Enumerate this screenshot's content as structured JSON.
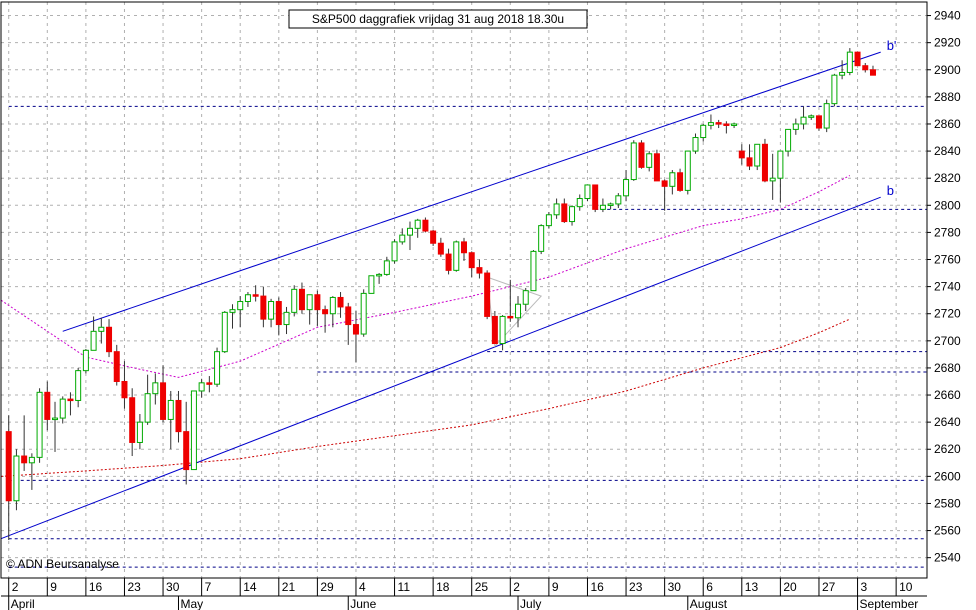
{
  "chart_data": {
    "type": "candlestick",
    "title": "S&P500 daggrafiek vrijdag 31 aug 2018 18.30u",
    "copyright": "© ADN Beursanalyse",
    "ylim": [
      2525,
      2950
    ],
    "y_ticks": [
      2540,
      2560,
      2580,
      2600,
      2620,
      2640,
      2660,
      2680,
      2700,
      2720,
      2740,
      2760,
      2780,
      2800,
      2820,
      2840,
      2860,
      2880,
      2900,
      2920,
      2940
    ],
    "x_tick_labels": [
      {
        "day": 0,
        "label": "2"
      },
      {
        "day": 5,
        "label": "9"
      },
      {
        "day": 10,
        "label": "16"
      },
      {
        "day": 15,
        "label": "23"
      },
      {
        "day": 20,
        "label": "30"
      },
      {
        "day": 25,
        "label": "7"
      },
      {
        "day": 30,
        "label": "14"
      },
      {
        "day": 35,
        "label": "21"
      },
      {
        "day": 40,
        "label": "29"
      },
      {
        "day": 45,
        "label": "4"
      },
      {
        "day": 50,
        "label": "11"
      },
      {
        "day": 55,
        "label": "18"
      },
      {
        "day": 60,
        "label": "25"
      },
      {
        "day": 65,
        "label": "2"
      },
      {
        "day": 70,
        "label": "9"
      },
      {
        "day": 75,
        "label": "16"
      },
      {
        "day": 80,
        "label": "23"
      },
      {
        "day": 85,
        "label": "30"
      },
      {
        "day": 90,
        "label": "6"
      },
      {
        "day": 95,
        "label": "13"
      },
      {
        "day": 100,
        "label": "20"
      },
      {
        "day": 105,
        "label": "27"
      },
      {
        "day": 110,
        "label": "3"
      },
      {
        "day": 115,
        "label": "10"
      }
    ],
    "months": [
      {
        "day": 0,
        "label": "April"
      },
      {
        "day": 22,
        "label": "May"
      },
      {
        "day": 44,
        "label": "June"
      },
      {
        "day": 66,
        "label": "July"
      },
      {
        "day": 88,
        "label": "August"
      },
      {
        "day": 110,
        "label": "September"
      }
    ],
    "x_range_days": [
      -1,
      119
    ],
    "candles": [
      [
        2633,
        2645,
        2553,
        2582
      ],
      [
        2582,
        2620,
        2575,
        2615
      ],
      [
        2615,
        2645,
        2604,
        2610
      ],
      [
        2610,
        2617,
        2590,
        2614
      ],
      [
        2614,
        2665,
        2610,
        2662
      ],
      [
        2662,
        2670,
        2634,
        2642
      ],
      [
        2642,
        2655,
        2618,
        2643
      ],
      [
        2643,
        2659,
        2639,
        2657
      ],
      [
        2657,
        2662,
        2645,
        2656
      ],
      [
        2656,
        2680,
        2651,
        2678
      ],
      [
        2678,
        2694,
        2676,
        2693
      ],
      [
        2693,
        2718,
        2693,
        2707
      ],
      [
        2707,
        2717,
        2698,
        2710
      ],
      [
        2710,
        2716,
        2688,
        2692
      ],
      [
        2692,
        2697,
        2667,
        2670
      ],
      [
        2670,
        2685,
        2650,
        2658
      ],
      [
        2658,
        2665,
        2615,
        2625
      ],
      [
        2625,
        2646,
        2620,
        2640
      ],
      [
        2640,
        2675,
        2638,
        2661
      ],
      [
        2661,
        2676,
        2653,
        2669
      ],
      [
        2669,
        2682,
        2640,
        2642
      ],
      [
        2642,
        2663,
        2620,
        2656
      ],
      [
        2656,
        2663,
        2625,
        2633
      ],
      [
        2633,
        2655,
        2594,
        2605
      ],
      [
        2605,
        2663,
        2605,
        2663
      ],
      [
        2663,
        2672,
        2658,
        2669
      ],
      [
        2669,
        2674,
        2662,
        2668
      ],
      [
        2668,
        2695,
        2666,
        2692
      ],
      [
        2692,
        2722,
        2691,
        2721
      ],
      [
        2721,
        2727,
        2709,
        2723
      ],
      [
        2723,
        2733,
        2710,
        2729
      ],
      [
        2729,
        2736,
        2725,
        2734
      ],
      [
        2734,
        2741,
        2729,
        2733
      ],
      [
        2733,
        2740,
        2710,
        2716
      ],
      [
        2716,
        2731,
        2710,
        2729
      ],
      [
        2729,
        2732,
        2704,
        2712
      ],
      [
        2712,
        2725,
        2705,
        2721
      ],
      [
        2721,
        2741,
        2718,
        2738
      ],
      [
        2738,
        2743,
        2720,
        2723
      ],
      [
        2723,
        2733,
        2712,
        2734
      ],
      [
        2734,
        2737,
        2711,
        2723
      ],
      [
        2723,
        2726,
        2706,
        2720
      ],
      [
        2720,
        2733,
        2710,
        2732
      ],
      [
        2732,
        2736,
        2717,
        2725
      ],
      [
        2725,
        2728,
        2697,
        2712
      ],
      [
        2712,
        2722,
        2684,
        2705
      ],
      [
        2705,
        2738,
        2703,
        2735
      ],
      [
        2735,
        2748,
        2735,
        2748
      ],
      [
        2748,
        2750,
        2742,
        2749
      ],
      [
        2749,
        2762,
        2748,
        2759
      ],
      [
        2759,
        2775,
        2757,
        2773
      ],
      [
        2773,
        2783,
        2771,
        2778
      ],
      [
        2778,
        2788,
        2767,
        2783
      ],
      [
        2783,
        2790,
        2776,
        2789
      ],
      [
        2789,
        2791,
        2780,
        2781
      ],
      [
        2781,
        2782,
        2770,
        2772
      ],
      [
        2772,
        2776,
        2762,
        2764
      ],
      [
        2764,
        2768,
        2749,
        2752
      ],
      [
        2752,
        2774,
        2751,
        2773
      ],
      [
        2773,
        2776,
        2759,
        2765
      ],
      [
        2765,
        2766,
        2747,
        2754
      ],
      [
        2754,
        2760,
        2746,
        2750
      ],
      [
        2750,
        2752,
        2716,
        2718
      ],
      [
        2718,
        2722,
        2698,
        2698
      ],
      [
        2698,
        2719,
        2693,
        2718
      ],
      [
        2718,
        2745,
        2714,
        2717
      ],
      [
        2717,
        2733,
        2710,
        2727
      ],
      [
        2727,
        2739,
        2722,
        2737
      ],
      [
        2737,
        2767,
        2737,
        2766
      ],
      [
        2766,
        2786,
        2764,
        2785
      ],
      [
        2785,
        2795,
        2783,
        2793
      ],
      [
        2793,
        2805,
        2790,
        2801
      ],
      [
        2801,
        2805,
        2787,
        2788
      ],
      [
        2788,
        2800,
        2785,
        2799
      ],
      [
        2799,
        2808,
        2796,
        2805
      ],
      [
        2805,
        2814,
        2803,
        2815
      ],
      [
        2815,
        2814,
        2795,
        2797
      ],
      [
        2797,
        2805,
        2795,
        2800
      ],
      [
        2800,
        2802,
        2797,
        2801
      ],
      [
        2801,
        2809,
        2798,
        2807
      ],
      [
        2807,
        2826,
        2803,
        2819
      ],
      [
        2819,
        2848,
        2818,
        2846
      ],
      [
        2846,
        2848,
        2827,
        2828
      ],
      [
        2828,
        2840,
        2825,
        2838
      ],
      [
        2838,
        2841,
        2818,
        2818
      ],
      [
        2818,
        2819,
        2796,
        2814
      ],
      [
        2814,
        2826,
        2808,
        2824
      ],
      [
        2824,
        2827,
        2810,
        2811
      ],
      [
        2811,
        2840,
        2808,
        2840
      ],
      [
        2840,
        2853,
        2838,
        2850
      ],
      [
        2850,
        2860,
        2847,
        2859
      ],
      [
        2859,
        2867,
        2856,
        2861
      ],
      [
        2861,
        2863,
        2857,
        2860
      ],
      [
        2860,
        2862,
        2853,
        2859
      ],
      [
        2859,
        2861,
        2857,
        2860
      ],
      [
        2840,
        2845,
        2830,
        2835
      ],
      [
        2835,
        2845,
        2826,
        2829
      ],
      [
        2829,
        2845,
        2826,
        2845
      ],
      [
        2845,
        2849,
        2817,
        2818
      ],
      [
        2818,
        2838,
        2804,
        2820
      ],
      [
        2820,
        2840,
        2802,
        2840
      ],
      [
        2840,
        2856,
        2836,
        2856
      ],
      [
        2856,
        2864,
        2852,
        2860
      ],
      [
        2860,
        2873,
        2856,
        2865
      ],
      [
        2865,
        2867,
        2863,
        2866
      ],
      [
        2866,
        2866,
        2855,
        2857
      ],
      [
        2857,
        2878,
        2854,
        2875
      ],
      [
        2875,
        2897,
        2873,
        2896
      ],
      [
        2896,
        2907,
        2893,
        2898
      ],
      [
        2898,
        2916,
        2896,
        2913
      ],
      [
        2913,
        2913,
        2903,
        2903
      ],
      [
        2903,
        2905,
        2898,
        2900
      ],
      [
        2900,
        2903,
        2896,
        2896
      ]
    ],
    "series": [
      {
        "kind": "ma50",
        "color": "#cc00cc",
        "points": [
          [
            -1,
            2730
          ],
          [
            10,
            2688
          ],
          [
            17,
            2679
          ],
          [
            22,
            2673
          ],
          [
            30,
            2685
          ],
          [
            40,
            2710
          ],
          [
            50,
            2721
          ],
          [
            60,
            2733
          ],
          [
            70,
            2747
          ],
          [
            80,
            2768
          ],
          [
            90,
            2785
          ],
          [
            95,
            2790
          ],
          [
            100,
            2797
          ],
          [
            105,
            2810
          ],
          [
            109,
            2822
          ]
        ]
      },
      {
        "kind": "ma200",
        "color": "#cc0000",
        "points": [
          [
            -1,
            2600
          ],
          [
            10,
            2604
          ],
          [
            20,
            2608
          ],
          [
            30,
            2613
          ],
          [
            40,
            2622
          ],
          [
            50,
            2630
          ],
          [
            60,
            2638
          ],
          [
            70,
            2650
          ],
          [
            80,
            2663
          ],
          [
            90,
            2680
          ],
          [
            100,
            2695
          ],
          [
            105,
            2706
          ],
          [
            109,
            2716
          ]
        ]
      },
      {
        "kind": "channel-upper",
        "color": "#0000cc",
        "label": "b'",
        "points": [
          [
            7,
            2707
          ],
          [
            113,
            2913
          ]
        ]
      },
      {
        "kind": "channel-lower",
        "color": "#0000cc",
        "label": "b",
        "points": [
          [
            -1,
            2554
          ],
          [
            113,
            2806
          ]
        ]
      }
    ],
    "h_lines": [
      {
        "y": 2873,
        "from": 0,
        "to": 119
      },
      {
        "y": 2797,
        "from": 76,
        "to": 119
      },
      {
        "y": 2692,
        "from": 62,
        "to": 119
      },
      {
        "y": 2677,
        "from": 40,
        "to": 119
      },
      {
        "y": 2597,
        "from": 0,
        "to": 119
      },
      {
        "y": 2554,
        "from": 0,
        "to": 119
      },
      {
        "y": 2533,
        "from": 0,
        "to": 119
      }
    ],
    "triangle": [
      [
        62,
        2747
      ],
      [
        69,
        2733
      ],
      [
        63,
        2696
      ]
    ],
    "grid": true,
    "colors": {
      "up": "#00aa00",
      "down": "#ee0000",
      "grid": "#b0b0b0",
      "hline": "#000088"
    }
  }
}
